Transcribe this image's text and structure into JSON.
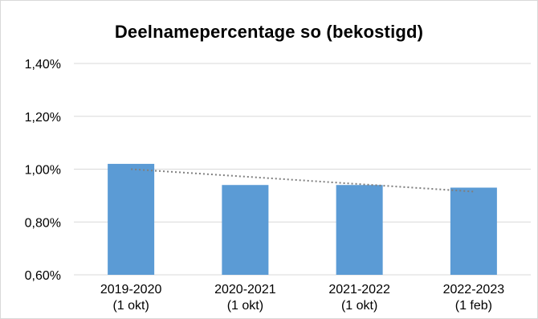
{
  "chart_data": {
    "type": "bar",
    "title": "Deelnamepercentage so (bekostigd)",
    "xlabel": "",
    "ylabel": "",
    "categories": [
      [
        "2019-2020",
        "(1 okt)"
      ],
      [
        "2020-2021",
        "(1 okt)"
      ],
      [
        "2021-2022",
        "(1 okt)"
      ],
      [
        "2022-2023",
        "(1 feb)"
      ]
    ],
    "values": [
      1.02,
      0.94,
      0.94,
      0.93
    ],
    "value_unit": "%",
    "ylim": [
      0.6,
      1.4
    ],
    "y_ticks": [
      0.6,
      0.8,
      1.0,
      1.2,
      1.4
    ],
    "y_tick_labels": [
      "0,60%",
      "0,80%",
      "1,00%",
      "1,20%",
      "1,40%"
    ],
    "trendline": {
      "type": "linear",
      "style": "dotted",
      "start": 1.0,
      "end": 0.915
    },
    "grid": true,
    "legend": "none",
    "colors": {
      "bar": "#5b9bd5",
      "grid": "#d9d9d9",
      "trend": "#7f7f7f"
    }
  }
}
